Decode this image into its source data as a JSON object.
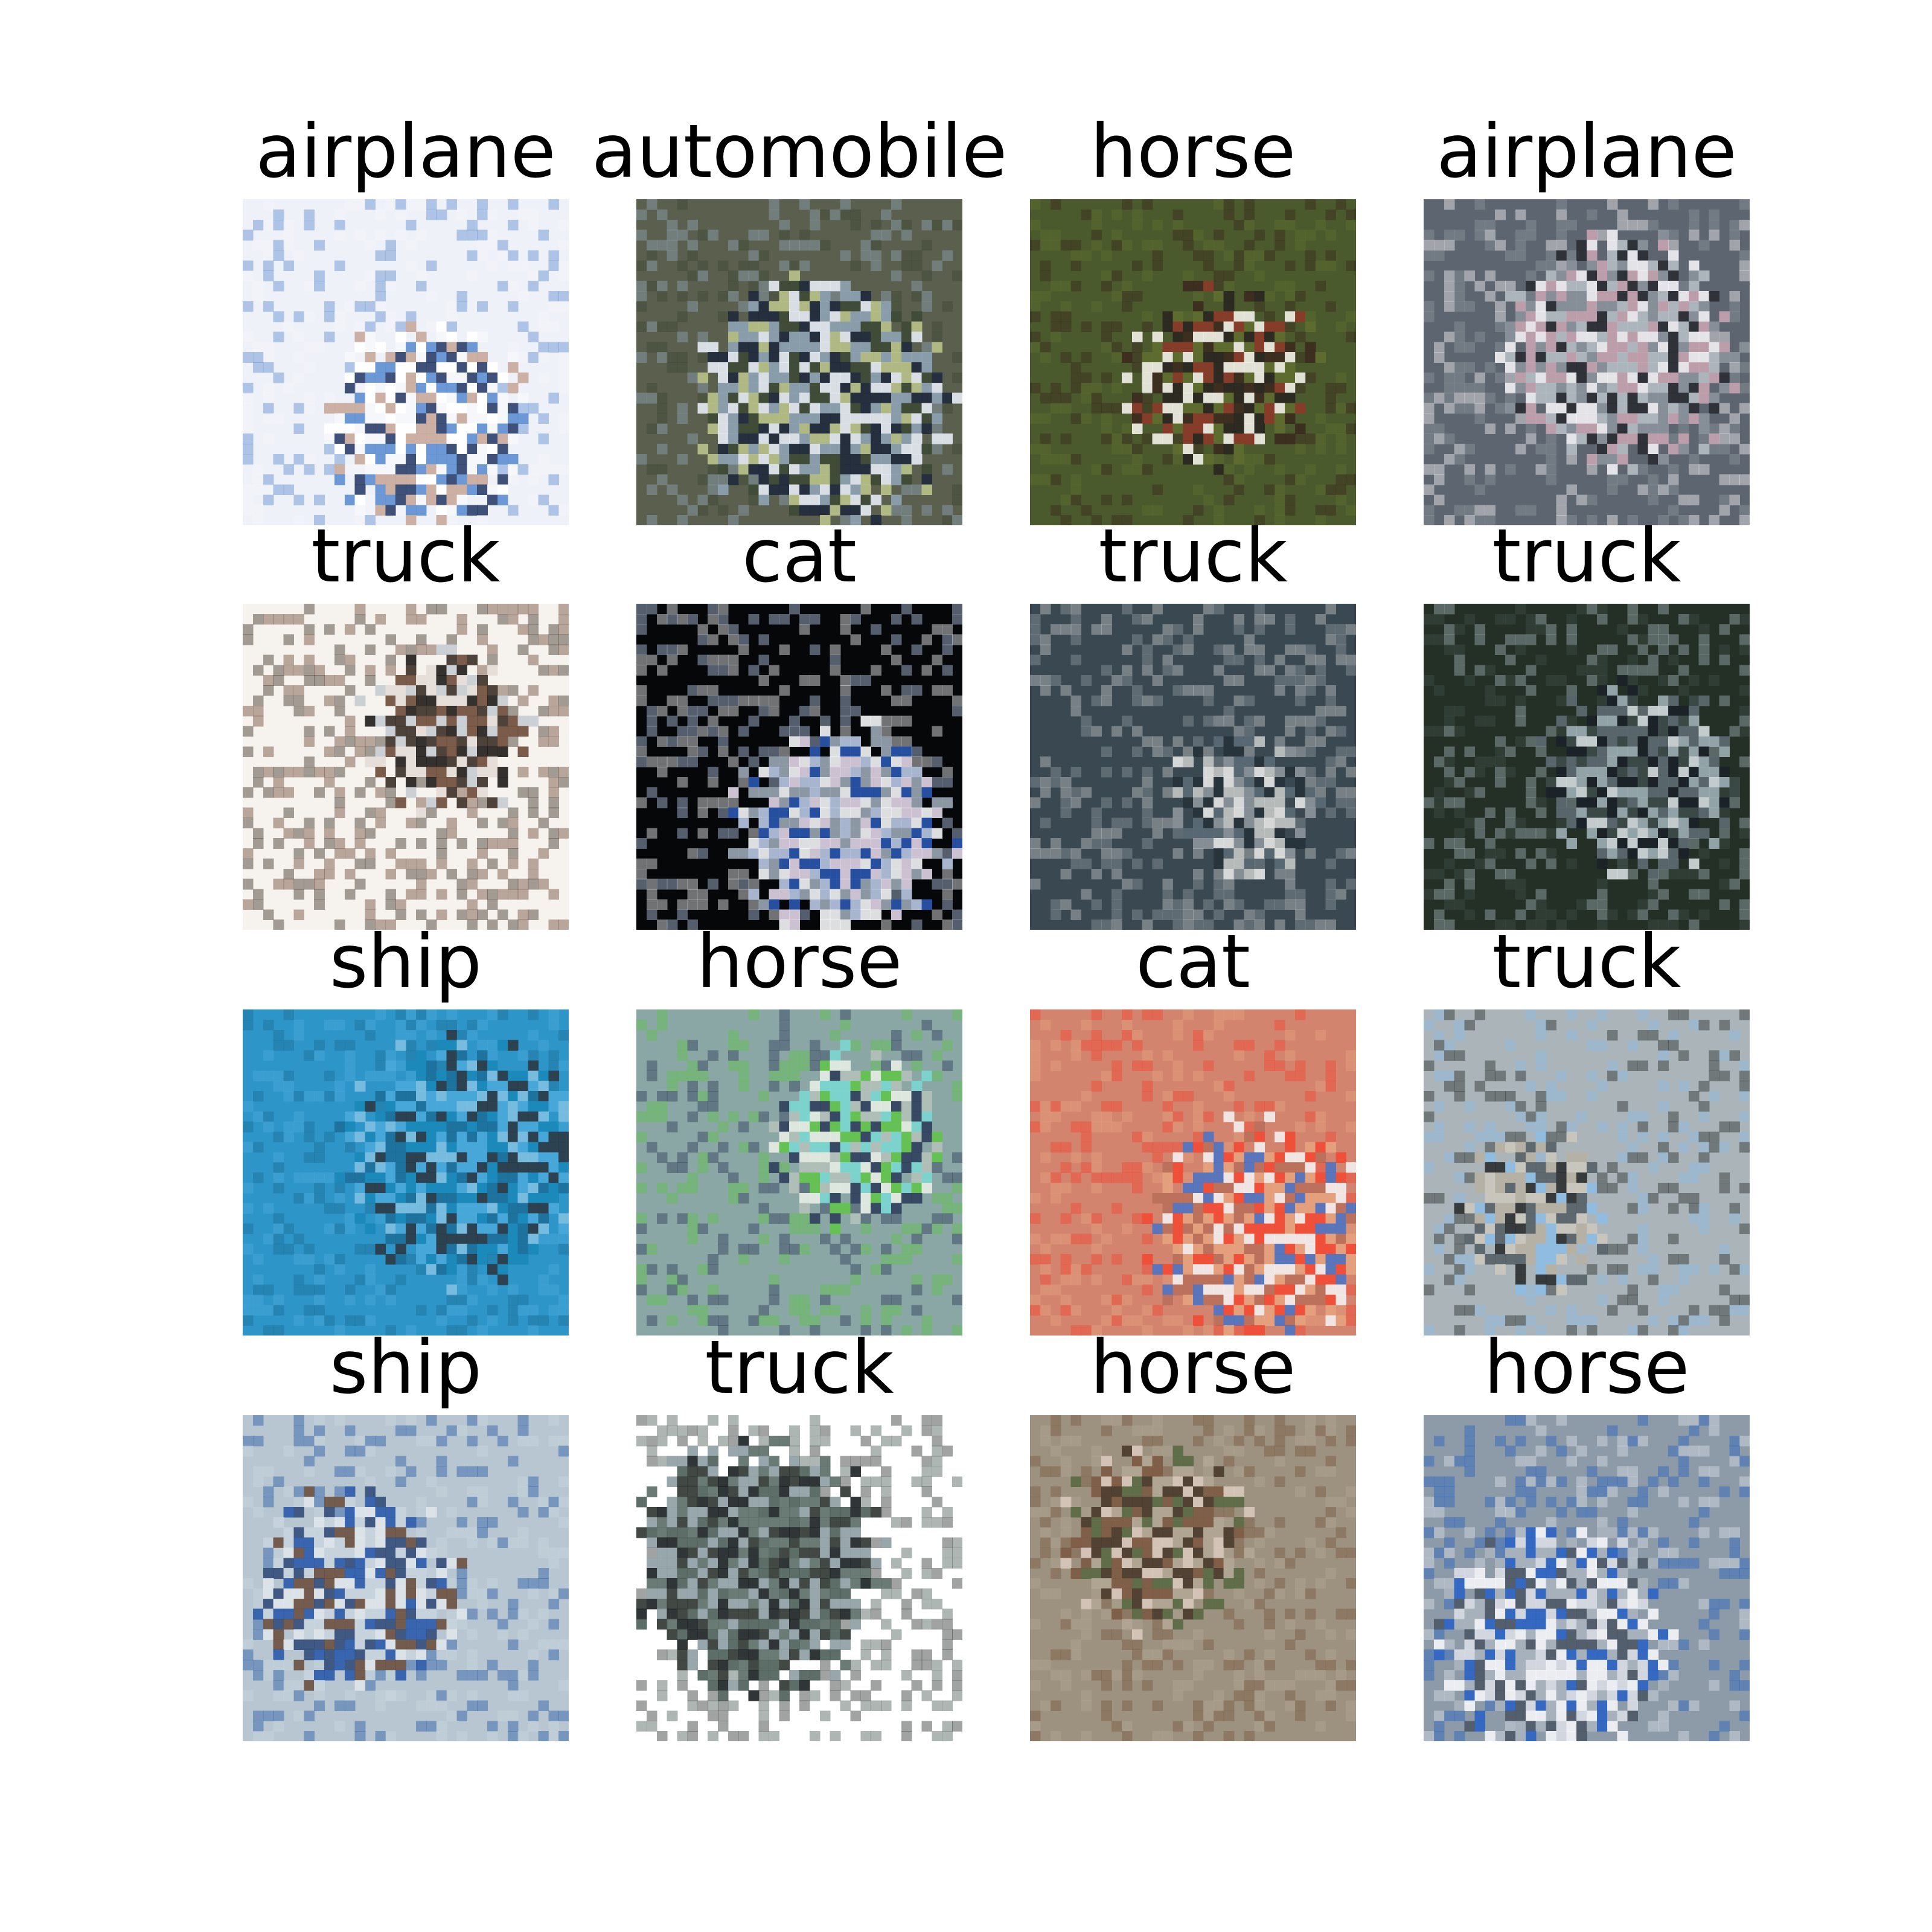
{
  "grid": {
    "rows": 4,
    "cols": 4,
    "cells": [
      {
        "label": "airplane",
        "bg": "#eef1f7",
        "palette": [
          "#f5f7fb",
          "#5d8fd0",
          "#2c3f6a",
          "#c9a99a",
          "#ffffff"
        ]
      },
      {
        "label": "automobile",
        "bg": "#5a5f4e",
        "palette": [
          "#3d4a36",
          "#8ea3b5",
          "#1f2a3d",
          "#b9c28a",
          "#e6ecf4"
        ]
      },
      {
        "label": "horse",
        "bg": "#4a5a2c",
        "palette": [
          "#5f6e2f",
          "#3b2a1e",
          "#f2efe8",
          "#8c3a2a",
          "#2a2620"
        ]
      },
      {
        "label": "airplane",
        "bg": "#5d6670",
        "palette": [
          "#8b949c",
          "#f3f1f4",
          "#2a2e33",
          "#c7a3b0",
          "#b5bdc4"
        ]
      },
      {
        "label": "truck",
        "bg": "#f6f2ee",
        "palette": [
          "#3c3026",
          "#6e4a36",
          "#c7ccd1",
          "#1f1c1a",
          "#e4ddd6"
        ]
      },
      {
        "label": "cat",
        "bg": "#050708",
        "palette": [
          "#f4f6f8",
          "#b9c9e6",
          "#2a58b0",
          "#9aa7b5",
          "#e2d6e8"
        ]
      },
      {
        "label": "truck",
        "bg": "#3a4852",
        "palette": [
          "#8e969c",
          "#c4c6c4",
          "#27323a",
          "#5b6c76",
          "#e7e8e6"
        ]
      },
      {
        "label": "truck",
        "bg": "#243026",
        "palette": [
          "#3d4d4a",
          "#9fb0b6",
          "#1b2229",
          "#5e6b73",
          "#d6dde0"
        ]
      },
      {
        "label": "ship",
        "bg": "#2e95c9",
        "palette": [
          "#4aa8d9",
          "#1c6e99",
          "#2c3844",
          "#7fc0e0",
          "#1a88b8"
        ]
      },
      {
        "label": "horse",
        "bg": "#8aa7a6",
        "palette": [
          "#60c44a",
          "#2f3f5c",
          "#e6eee4",
          "#7ad7d0",
          "#b3c1b9"
        ]
      },
      {
        "label": "cat",
        "bg": "#d3846e",
        "palette": [
          "#e5a27e",
          "#f24a34",
          "#4e73c2",
          "#f3efee",
          "#b86f5a"
        ]
      },
      {
        "label": "truck",
        "bg": "#aab4b9",
        "palette": [
          "#8dbde4",
          "#2a2e2f",
          "#cbc7bd",
          "#b7b0a3",
          "#556067"
        ]
      },
      {
        "label": "ship",
        "bg": "#b7c6d0",
        "palette": [
          "#2a5aa8",
          "#c9d4dd",
          "#6b4f3f",
          "#e0e6ea",
          "#334d7a"
        ]
      },
      {
        "label": "truck",
        "bg": "#ffffff",
        "palette": [
          "#2d3430",
          "#4b5d57",
          "#1a1f21",
          "#8c9da3",
          "#5a6b66"
        ]
      },
      {
        "label": "horse",
        "bg": "#9c927f",
        "palette": [
          "#7d5a43",
          "#b3a695",
          "#596a43",
          "#d8c9bd",
          "#4a3a2c"
        ]
      },
      {
        "label": "horse",
        "bg": "#8c9ba7",
        "palette": [
          "#2b63c4",
          "#d9dde6",
          "#4d5966",
          "#a9b4bf",
          "#f5f6f8"
        ]
      }
    ]
  }
}
